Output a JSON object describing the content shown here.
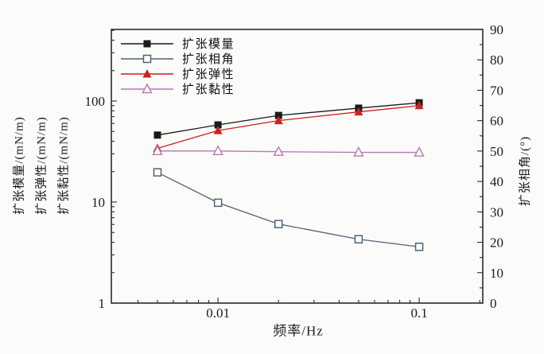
{
  "figure": {
    "background": "#fbfbf9",
    "frame_color": "#2b2b2b",
    "text_color": "#1c1c1c",
    "x_axis": {
      "title": "频率/Hz",
      "scale": "log",
      "range": [
        0.00295,
        0.207
      ],
      "major_ticks": [
        0.01,
        0.1
      ],
      "major_tick_labels": [
        "0.01",
        "0.1"
      ],
      "minor_ticks": [
        0.004,
        0.005,
        0.006,
        0.007,
        0.008,
        0.009,
        0.02,
        0.03,
        0.04,
        0.05,
        0.06,
        0.07,
        0.08,
        0.09,
        0.2
      ]
    },
    "y_left_axis": {
      "titles": [
        "扩张模量/(mN/m)",
        "扩张弹性/(mN/m)",
        "扩张黏性/(mN/m)"
      ],
      "scale": "log",
      "range": [
        1,
        511
      ],
      "major_ticks": [
        1,
        10,
        100
      ],
      "major_tick_labels": [
        "1",
        "10",
        "100"
      ],
      "minor_ticks": [
        2,
        3,
        4,
        5,
        6,
        7,
        8,
        9,
        20,
        30,
        40,
        50,
        60,
        70,
        80,
        90,
        200,
        300,
        400,
        500
      ]
    },
    "y_right_axis": {
      "title": "扩张相角/(°)",
      "scale": "linear",
      "range": [
        0,
        90
      ],
      "major_ticks": [
        0,
        10,
        20,
        30,
        40,
        50,
        60,
        70,
        80,
        90
      ],
      "major_tick_labels": [
        "0",
        "10",
        "20",
        "30",
        "40",
        "50",
        "60",
        "70",
        "80",
        "90"
      ],
      "minor_ticks": [
        5,
        15,
        25,
        35,
        45,
        55,
        65,
        75,
        85
      ]
    }
  },
  "chart_data": {
    "type": "line",
    "title": "",
    "xlabel": "频率/Hz",
    "ylabel_left": "扩张模量/扩张弹性/扩张黏性 (mN/m)",
    "ylabel_right": "扩张相角/(°)",
    "x_scale": "log",
    "y_left_scale": "log",
    "x": [
      0.005,
      0.01,
      0.02,
      0.05,
      0.1
    ],
    "series": [
      {
        "name": "扩张模量",
        "slug": "dilational-modulus",
        "axis": "left",
        "values": [
          46,
          58,
          72,
          85,
          96
        ],
        "color": "#1a1a1a",
        "marker": "square-filled"
      },
      {
        "name": "扩张相角",
        "slug": "phase-angle",
        "axis": "right",
        "values": [
          43,
          33,
          26,
          21,
          18.5
        ],
        "color": "#4e6378",
        "marker": "square-open"
      },
      {
        "name": "扩张弹性",
        "slug": "dilational-elasticity",
        "axis": "left",
        "values": [
          34,
          51,
          64,
          78,
          90
        ],
        "color": "#cd2121",
        "marker": "triangle-filled"
      },
      {
        "name": "扩张黏性",
        "slug": "dilational-viscosity",
        "axis": "left",
        "values": [
          32,
          32,
          31.5,
          31,
          31
        ],
        "color": "#b878b0",
        "marker": "triangle-open"
      }
    ],
    "legend_position": "top-left",
    "grid": false
  }
}
